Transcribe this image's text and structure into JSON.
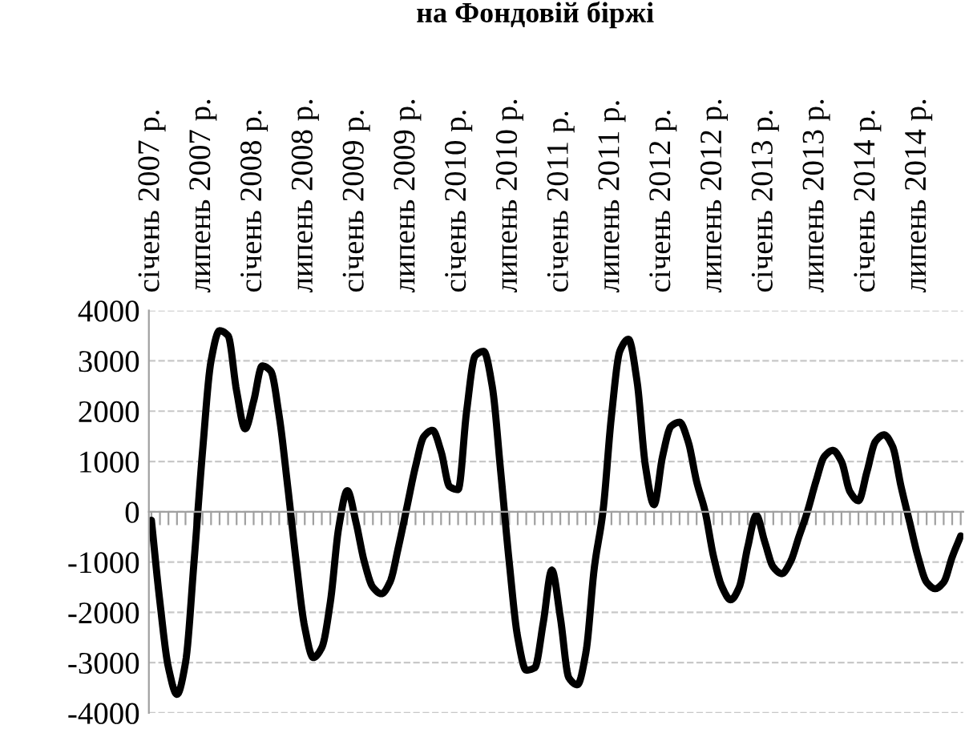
{
  "chart_data": {
    "type": "line",
    "title": "на Фондовій біржі",
    "categories": [
      "січень 2007 р.",
      null,
      null,
      null,
      null,
      null,
      "липень 2007 р.",
      null,
      null,
      null,
      null,
      null,
      "січень 2008 р.",
      null,
      null,
      null,
      null,
      null,
      "липень 2008 р.",
      null,
      null,
      null,
      null,
      null,
      "січень 2009 р.",
      null,
      null,
      null,
      null,
      null,
      "липень 2009 р.",
      null,
      null,
      null,
      null,
      null,
      "січень 2010 р.",
      null,
      null,
      null,
      null,
      null,
      "липень 2010 р.",
      null,
      null,
      null,
      null,
      null,
      "січень 2011 р.",
      null,
      null,
      null,
      null,
      null,
      "липень 2011 р.",
      null,
      null,
      null,
      null,
      null,
      "січень 2012 р.",
      null,
      null,
      null,
      null,
      null,
      "липень 2012 р.",
      null,
      null,
      null,
      null,
      null,
      "січень 2013 р.",
      null,
      null,
      null,
      null,
      null,
      "липень 2013 р.",
      null,
      null,
      null,
      null,
      null,
      "січень 2014 р.",
      null,
      null,
      null,
      null,
      null,
      "липень 2014 р.",
      null,
      null,
      null,
      null,
      null
    ],
    "series": [
      {
        "color": "#000000",
        "values": [
          -170,
          -1800,
          -3100,
          -3630,
          -3000,
          -1000,
          1200,
          3000,
          3600,
          3500,
          2400,
          1650,
          2200,
          2900,
          2800,
          1900,
          500,
          -1000,
          -2300,
          -2900,
          -2700,
          -1800,
          -300,
          420,
          -200,
          -1000,
          -1500,
          -1630,
          -1400,
          -700,
          100,
          900,
          1500,
          1620,
          1200,
          500,
          440,
          2000,
          3100,
          3190,
          2500,
          800,
          -1000,
          -2500,
          -3150,
          -3100,
          -2200,
          -1160,
          -2100,
          -3300,
          -3440,
          -2800,
          -1100,
          0,
          1900,
          3200,
          3430,
          2600,
          900,
          140,
          1100,
          1700,
          1780,
          1400,
          600,
          0,
          -900,
          -1500,
          -1750,
          -1500,
          -700,
          -70,
          -600,
          -1100,
          -1230,
          -1000,
          -500,
          0,
          600,
          1100,
          1220,
          1000,
          400,
          220,
          800,
          1400,
          1530,
          1300,
          500,
          -200,
          -900,
          -1400,
          -1530,
          -1400,
          -900,
          -480
        ]
      }
    ],
    "ylim": [
      -4000,
      4000
    ],
    "yticks": [
      {
        "value": -4000,
        "label": "-4000"
      },
      {
        "value": -3000,
        "label": "-3000"
      },
      {
        "value": -2000,
        "label": "-2000"
      },
      {
        "value": -1000,
        "label": "-1000"
      },
      0,
      1000,
      2000,
      3000,
      4000
    ],
    "grid": "y",
    "marker": "none",
    "line_style": "solid"
  }
}
